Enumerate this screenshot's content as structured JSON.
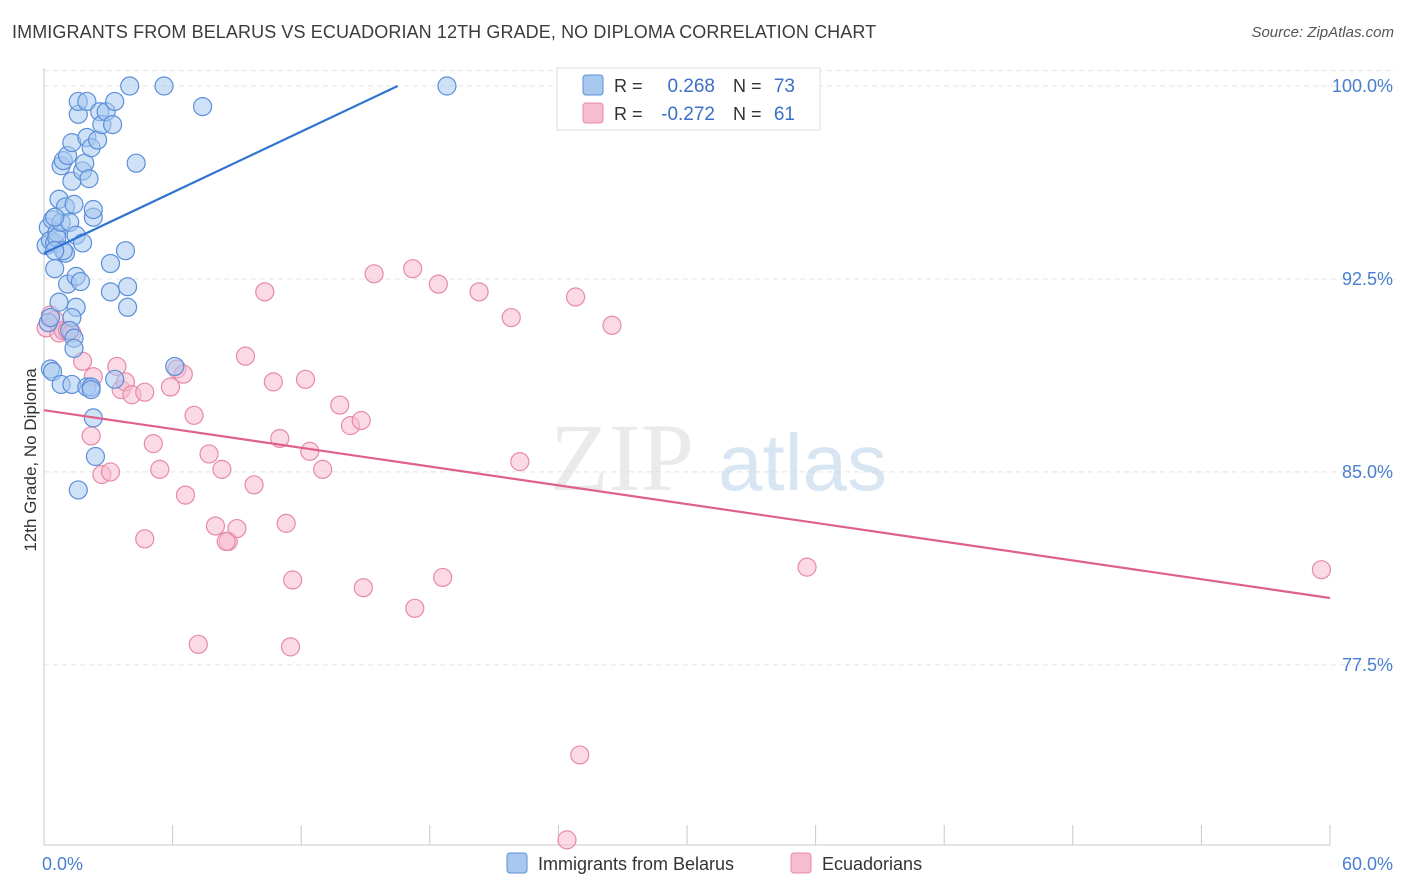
{
  "title": "IMMIGRANTS FROM BELARUS VS ECUADORIAN 12TH GRADE, NO DIPLOMA CORRELATION CHART",
  "source": "Source: ZipAtlas.com",
  "watermark": {
    "zip": "ZIP",
    "atlas": "atlas"
  },
  "colors": {
    "blue_fill": "#a8c8f0",
    "blue_stroke": "#5b8fd8",
    "blue_line": "#2f74d0",
    "pink_fill": "#f7bcd0",
    "pink_stroke": "#e68aa8",
    "pink_line": "#e0608c",
    "tick_text": "#4a7fd0",
    "grid": "#e3e3e3"
  },
  "legend_stats": {
    "r_label": "R =",
    "n_label": "N =",
    "rows": [
      {
        "r": "0.268",
        "n": "73"
      },
      {
        "r": "-0.272",
        "n": "61"
      }
    ]
  },
  "chart_data": {
    "type": "scatter",
    "title": "IMMIGRANTS FROM BELARUS VS ECUADORIAN 12TH GRADE, NO DIPLOMA CORRELATION CHART",
    "xlabel": "",
    "ylabel": "12th Grade, No Diploma",
    "xlim": [
      0,
      60
    ],
    "ylim": [
      70.5,
      100.7
    ],
    "x_tick_labels": [
      "0.0%",
      "60.0%"
    ],
    "y_ticks": [
      77.5,
      85.0,
      92.5,
      100.0
    ],
    "y_tick_labels": [
      "77.5%",
      "85.0%",
      "92.5%",
      "100.0%"
    ],
    "grid": true,
    "legend_position": "bottom",
    "series": [
      {
        "name": "Immigrants from Belarus",
        "r": 0.268,
        "n": 73,
        "trend": [
          [
            0,
            93.5
          ],
          [
            16.5,
            100.0
          ]
        ],
        "points": [
          [
            0.1,
            93.8
          ],
          [
            0.2,
            94.5
          ],
          [
            0.3,
            94.0
          ],
          [
            0.4,
            94.8
          ],
          [
            0.5,
            93.9
          ],
          [
            0.6,
            94.3
          ],
          [
            0.2,
            90.8
          ],
          [
            0.3,
            89.0
          ],
          [
            0.5,
            92.9
          ],
          [
            0.6,
            94.1
          ],
          [
            0.7,
            95.6
          ],
          [
            0.8,
            96.9
          ],
          [
            0.8,
            94.7
          ],
          [
            0.9,
            97.1
          ],
          [
            1.0,
            95.3
          ],
          [
            1.0,
            93.5
          ],
          [
            1.1,
            92.3
          ],
          [
            1.1,
            97.3
          ],
          [
            1.2,
            94.7
          ],
          [
            1.3,
            96.3
          ],
          [
            1.3,
            97.8
          ],
          [
            1.4,
            95.4
          ],
          [
            1.5,
            94.2
          ],
          [
            1.5,
            92.6
          ],
          [
            1.6,
            98.9
          ],
          [
            1.6,
            99.4
          ],
          [
            1.7,
            92.4
          ],
          [
            1.8,
            96.7
          ],
          [
            1.8,
            93.9
          ],
          [
            1.9,
            97.0
          ],
          [
            2.0,
            98.0
          ],
          [
            2.0,
            99.4
          ],
          [
            2.1,
            96.4
          ],
          [
            2.2,
            97.6
          ],
          [
            2.3,
            94.9
          ],
          [
            2.3,
            95.2
          ],
          [
            2.5,
            97.9
          ],
          [
            2.6,
            99.0
          ],
          [
            2.7,
            98.5
          ],
          [
            2.9,
            99.0
          ],
          [
            3.2,
            98.5
          ],
          [
            3.3,
            99.4
          ],
          [
            4.0,
            100.0
          ],
          [
            5.6,
            100.0
          ],
          [
            7.4,
            99.2
          ],
          [
            18.8,
            100.0
          ],
          [
            4.3,
            97.0
          ],
          [
            3.8,
            93.6
          ],
          [
            3.1,
            93.1
          ],
          [
            3.9,
            92.2
          ],
          [
            3.1,
            92.0
          ],
          [
            3.9,
            91.4
          ],
          [
            1.5,
            91.4
          ],
          [
            0.7,
            91.6
          ],
          [
            1.3,
            91.0
          ],
          [
            1.2,
            90.5
          ],
          [
            1.4,
            90.2
          ],
          [
            1.4,
            89.8
          ],
          [
            0.4,
            88.9
          ],
          [
            0.8,
            88.4
          ],
          [
            1.3,
            88.4
          ],
          [
            2.0,
            88.3
          ],
          [
            2.2,
            88.3
          ],
          [
            3.3,
            88.6
          ],
          [
            2.3,
            87.1
          ],
          [
            2.4,
            85.6
          ],
          [
            1.6,
            84.3
          ],
          [
            6.1,
            89.1
          ],
          [
            0.3,
            91.0
          ],
          [
            0.9,
            93.6
          ],
          [
            0.5,
            93.6
          ],
          [
            0.5,
            94.9
          ],
          [
            2.2,
            88.2
          ]
        ]
      },
      {
        "name": "Ecuadorians",
        "r": -0.272,
        "n": 61,
        "trend": [
          [
            0,
            87.4
          ],
          [
            60,
            80.1
          ]
        ],
        "points": [
          [
            0.1,
            90.6
          ],
          [
            0.3,
            91.1
          ],
          [
            0.5,
            90.9
          ],
          [
            0.7,
            90.4
          ],
          [
            0.9,
            90.5
          ],
          [
            1.1,
            90.5
          ],
          [
            1.3,
            90.4
          ],
          [
            1.8,
            89.3
          ],
          [
            2.2,
            86.4
          ],
          [
            2.3,
            88.7
          ],
          [
            2.7,
            84.9
          ],
          [
            3.1,
            85.0
          ],
          [
            3.4,
            89.1
          ],
          [
            3.6,
            88.2
          ],
          [
            3.8,
            88.5
          ],
          [
            4.1,
            88.0
          ],
          [
            4.7,
            88.1
          ],
          [
            5.1,
            86.1
          ],
          [
            5.4,
            85.1
          ],
          [
            5.9,
            88.3
          ],
          [
            6.2,
            89.0
          ],
          [
            6.5,
            88.8
          ],
          [
            7.0,
            87.2
          ],
          [
            7.7,
            85.7
          ],
          [
            8.0,
            82.9
          ],
          [
            8.3,
            85.1
          ],
          [
            8.6,
            82.3
          ],
          [
            9.0,
            82.8
          ],
          [
            9.4,
            89.5
          ],
          [
            9.8,
            84.5
          ],
          [
            10.3,
            92.0
          ],
          [
            10.7,
            88.5
          ],
          [
            11.0,
            86.3
          ],
          [
            12.2,
            88.6
          ],
          [
            12.4,
            85.8
          ],
          [
            13.0,
            85.1
          ],
          [
            13.8,
            87.6
          ],
          [
            14.3,
            86.8
          ],
          [
            14.8,
            87.0
          ],
          [
            15.4,
            92.7
          ],
          [
            17.2,
            92.9
          ],
          [
            18.4,
            92.3
          ],
          [
            20.3,
            92.0
          ],
          [
            21.8,
            91.0
          ],
          [
            22.2,
            85.4
          ],
          [
            24.8,
            91.8
          ],
          [
            26.5,
            90.7
          ],
          [
            25.0,
            74.0
          ],
          [
            24.4,
            70.7
          ],
          [
            18.6,
            80.9
          ],
          [
            17.3,
            79.7
          ],
          [
            14.9,
            80.5
          ],
          [
            11.6,
            80.8
          ],
          [
            11.5,
            78.2
          ],
          [
            7.2,
            78.3
          ],
          [
            8.5,
            82.3
          ],
          [
            6.6,
            84.1
          ],
          [
            4.7,
            82.4
          ],
          [
            11.3,
            83.0
          ],
          [
            35.6,
            81.3
          ],
          [
            59.6,
            81.2
          ]
        ]
      }
    ]
  }
}
